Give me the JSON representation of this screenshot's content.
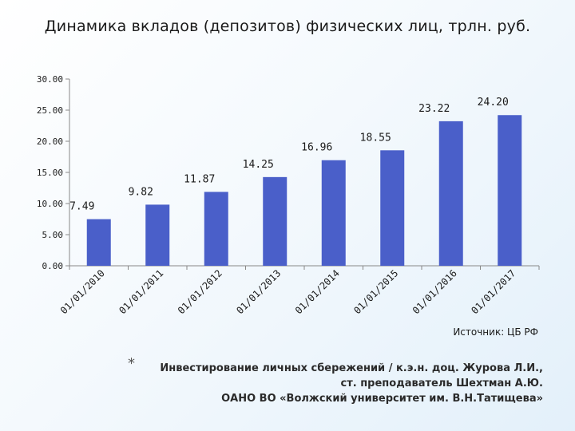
{
  "chart_data": {
    "type": "bar",
    "title": "Динамика вкладов (депозитов) физических лиц, трлн. руб.",
    "categories": [
      "01/01/2010",
      "01/01/2011",
      "01/01/2012",
      "01/01/2013",
      "01/01/2014",
      "01/01/2015",
      "01/01/2016",
      "01/01/2017"
    ],
    "values": [
      7.49,
      9.82,
      11.87,
      14.25,
      16.96,
      18.55,
      23.22,
      24.2
    ],
    "value_labels": [
      "7.49",
      "9.82",
      "11.87",
      "14.25",
      "16.96",
      "18.55",
      "23.22",
      "24.20"
    ],
    "y_ticks": [
      "0.00",
      "5.00",
      "10.00",
      "15.00",
      "20.00",
      "25.00",
      "30.00"
    ],
    "ylim": [
      0,
      30
    ],
    "xlabel": "",
    "ylabel": "",
    "grid": false,
    "bar_color": "#4a5fc9"
  },
  "source_note": "Источник: ЦБ РФ",
  "footer": {
    "star": "*",
    "line1": "Инвестирование личных сбережений / к.э.н. доц. Журова Л.И.,",
    "line2": "ст. преподаватель Шехтман А.Ю.",
    "line3": "ОАНО ВО «Волжский университет им. В.Н.Татищева»"
  }
}
